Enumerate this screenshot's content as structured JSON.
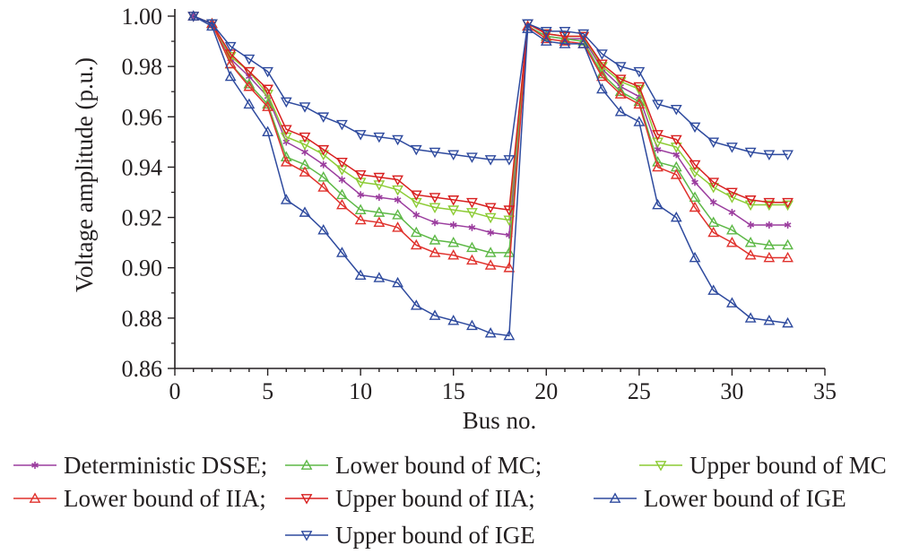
{
  "chart_data": {
    "type": "line",
    "xlabel": "Bus no.",
    "ylabel": "Voltage amplitude (p.u.)",
    "xlim": [
      0,
      35
    ],
    "ylim": [
      0.86,
      1.0
    ],
    "xticks": [
      0,
      5,
      10,
      15,
      20,
      25,
      30,
      35
    ],
    "yticks": [
      0.86,
      0.88,
      0.9,
      0.92,
      0.94,
      0.96,
      0.98,
      1.0
    ],
    "x": [
      1,
      2,
      3,
      4,
      5,
      6,
      7,
      8,
      9,
      10,
      11,
      12,
      13,
      14,
      15,
      16,
      17,
      18,
      19,
      20,
      21,
      22,
      23,
      24,
      25,
      26,
      27,
      28,
      29,
      30,
      31,
      32,
      33
    ],
    "grid": false,
    "legend_position": "bottom",
    "series": [
      {
        "name": "Deterministic DSSE;",
        "color": "#9b3d9e",
        "marker": "star",
        "values": [
          1.0,
          0.997,
          0.983,
          0.976,
          0.968,
          0.95,
          0.946,
          0.941,
          0.935,
          0.929,
          0.928,
          0.927,
          0.921,
          0.918,
          0.917,
          0.916,
          0.914,
          0.913,
          0.996,
          0.992,
          0.991,
          0.991,
          0.979,
          0.972,
          0.968,
          0.947,
          0.945,
          0.934,
          0.926,
          0.922,
          0.917,
          0.917,
          0.917
        ]
      },
      {
        "name": "Lower bound of MC;",
        "color": "#5db846",
        "marker": "tri-up",
        "values": [
          1.0,
          0.997,
          0.981,
          0.973,
          0.965,
          0.944,
          0.941,
          0.936,
          0.929,
          0.923,
          0.922,
          0.921,
          0.914,
          0.911,
          0.91,
          0.908,
          0.906,
          0.906,
          0.996,
          0.992,
          0.991,
          0.99,
          0.977,
          0.97,
          0.966,
          0.942,
          0.94,
          0.928,
          0.918,
          0.915,
          0.91,
          0.909,
          0.909
        ]
      },
      {
        "name": "Upper bound of MC",
        "color": "#8ccb34",
        "marker": "tri-down",
        "values": [
          1.0,
          0.997,
          0.984,
          0.978,
          0.969,
          0.952,
          0.949,
          0.945,
          0.939,
          0.934,
          0.933,
          0.931,
          0.926,
          0.924,
          0.923,
          0.922,
          0.92,
          0.919,
          0.997,
          0.993,
          0.992,
          0.992,
          0.98,
          0.974,
          0.971,
          0.95,
          0.948,
          0.938,
          0.932,
          0.928,
          0.925,
          0.925,
          0.925
        ]
      },
      {
        "name": "Lower bound of IIA;",
        "color": "#e0312c",
        "marker": "tri-up",
        "values": [
          1.0,
          0.997,
          0.981,
          0.972,
          0.964,
          0.942,
          0.938,
          0.932,
          0.925,
          0.919,
          0.918,
          0.916,
          0.909,
          0.906,
          0.905,
          0.903,
          0.901,
          0.9,
          0.996,
          0.991,
          0.99,
          0.989,
          0.976,
          0.969,
          0.965,
          0.94,
          0.937,
          0.924,
          0.914,
          0.91,
          0.905,
          0.904,
          0.904
        ]
      },
      {
        "name": "Upper bound of IIA;",
        "color": "#d81e1e",
        "marker": "tri-down",
        "values": [
          1.0,
          0.997,
          0.985,
          0.978,
          0.971,
          0.955,
          0.952,
          0.947,
          0.942,
          0.937,
          0.936,
          0.935,
          0.929,
          0.928,
          0.927,
          0.926,
          0.924,
          0.923,
          0.997,
          0.993,
          0.992,
          0.992,
          0.981,
          0.975,
          0.972,
          0.953,
          0.951,
          0.941,
          0.934,
          0.93,
          0.927,
          0.926,
          0.926
        ]
      },
      {
        "name": "Lower bound of IGE",
        "color": "#2e4a9e",
        "marker": "tri-up",
        "values": [
          1.0,
          0.996,
          0.976,
          0.965,
          0.954,
          0.927,
          0.922,
          0.915,
          0.906,
          0.897,
          0.896,
          0.894,
          0.885,
          0.881,
          0.879,
          0.877,
          0.874,
          0.873,
          0.995,
          0.99,
          0.989,
          0.989,
          0.971,
          0.962,
          0.958,
          0.925,
          0.92,
          0.904,
          0.891,
          0.886,
          0.88,
          0.879,
          0.878
        ]
      },
      {
        "name": "Upper bound of IGE",
        "color": "#2e4a9e",
        "marker": "tri-down",
        "values": [
          1.0,
          0.997,
          0.988,
          0.983,
          0.978,
          0.966,
          0.964,
          0.96,
          0.957,
          0.953,
          0.952,
          0.951,
          0.947,
          0.946,
          0.945,
          0.944,
          0.943,
          0.943,
          0.997,
          0.994,
          0.994,
          0.993,
          0.985,
          0.98,
          0.978,
          0.965,
          0.963,
          0.956,
          0.95,
          0.948,
          0.946,
          0.945,
          0.945
        ]
      }
    ]
  }
}
